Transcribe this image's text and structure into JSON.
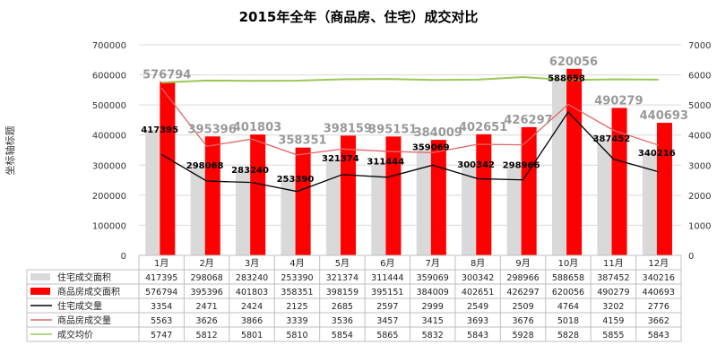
{
  "chart_data": {
    "type": "bar",
    "title": "2015年全年（商品房、住宅）成交对比",
    "ylabel": "坐标轴标题",
    "categories": [
      "1月",
      "2月",
      "3月",
      "4月",
      "5月",
      "6月",
      "7月",
      "8月",
      "9月",
      "10月",
      "11月",
      "12月"
    ],
    "y_left": {
      "min": 0,
      "max": 700000,
      "ticks": [
        0,
        100000,
        200000,
        300000,
        400000,
        500000,
        600000,
        700000
      ]
    },
    "y_right": {
      "min": 0,
      "max": 7000,
      "ticks": [
        0,
        1000,
        2000,
        3000,
        4000,
        5000,
        6000,
        7000
      ]
    },
    "grid": true,
    "legend": "bottom-table",
    "series": [
      {
        "name": "住宅成交面积",
        "type": "bar",
        "axis": "left",
        "color": "#d9d9d9",
        "values": [
          417395,
          298068,
          283240,
          253390,
          321374,
          311444,
          359069,
          300342,
          298966,
          588658,
          387452,
          340216
        ]
      },
      {
        "name": "商品房成交面积",
        "type": "bar",
        "axis": "left",
        "color": "#ff0000",
        "values": [
          576794,
          395396,
          401803,
          358351,
          398159,
          395151,
          384009,
          402651,
          426297,
          620056,
          490279,
          440693
        ]
      },
      {
        "name": "住宅成交量",
        "type": "line",
        "axis": "right",
        "color": "#000000",
        "values": [
          3354,
          2471,
          2424,
          2125,
          2685,
          2597,
          2999,
          2549,
          2509,
          4764,
          3202,
          2776
        ]
      },
      {
        "name": "商品房成交量",
        "type": "line",
        "axis": "right",
        "color": "#e06666",
        "values": [
          5563,
          3626,
          3866,
          3339,
          3536,
          3457,
          3415,
          3693,
          3676,
          5018,
          4159,
          3662
        ]
      },
      {
        "name": "成交均价",
        "type": "line",
        "axis": "right",
        "color": "#9bc75a",
        "values": [
          5747,
          5812,
          5801,
          5810,
          5854,
          5865,
          5832,
          5843,
          5928,
          5828,
          5855,
          5843
        ]
      }
    ]
  }
}
